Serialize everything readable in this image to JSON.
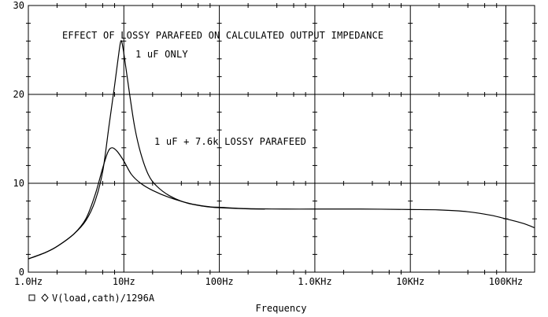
{
  "chart_data": {
    "type": "line",
    "title": "EFFECT OF LOSSY PARAFEED ON CALCULATED OUTPUT IMPEDANCE",
    "xlabel": "Frequency",
    "ylabel": "",
    "x_scale": "log",
    "xlim": [
      1,
      200000
    ],
    "ylim": [
      0,
      30
    ],
    "grid": true,
    "x_ticks": [
      {
        "value": 1,
        "label": "1.0Hz"
      },
      {
        "value": 10,
        "label": "10Hz"
      },
      {
        "value": 100,
        "label": "100Hz"
      },
      {
        "value": 1000,
        "label": "1.0KHz"
      },
      {
        "value": 10000,
        "label": "10KHz"
      },
      {
        "value": 100000,
        "label": "100KHz"
      }
    ],
    "y_ticks": [
      {
        "value": 0,
        "label": "0"
      },
      {
        "value": 10,
        "label": "10"
      },
      {
        "value": 20,
        "label": "20"
      },
      {
        "value": 30,
        "label": "30"
      }
    ],
    "legend": {
      "placement": "bottom-left",
      "entry": "V(load,cath)/1296A",
      "markers": [
        "square",
        "diamond"
      ]
    },
    "annotations": [
      {
        "text": "1 uF ONLY"
      },
      {
        "text": "1 uF + 7.6k LOSSY PARAFEED"
      }
    ],
    "series": [
      {
        "name": "1 uF ONLY",
        "points": [
          [
            1,
            1.5
          ],
          [
            1.5,
            2.2
          ],
          [
            2,
            2.9
          ],
          [
            3,
            4.3
          ],
          [
            4,
            5.8
          ],
          [
            5,
            8.0
          ],
          [
            6,
            11.3
          ],
          [
            7,
            16.5
          ],
          [
            8,
            21.0
          ],
          [
            8.7,
            24.0
          ],
          [
            9.3,
            26.0
          ],
          [
            9.8,
            25.2
          ],
          [
            10.5,
            23.0
          ],
          [
            11.5,
            20.0
          ],
          [
            13,
            16.3
          ],
          [
            15,
            13.4
          ],
          [
            18,
            11.0
          ],
          [
            22,
            9.7
          ],
          [
            30,
            8.6
          ],
          [
            45,
            7.8
          ],
          [
            70,
            7.4
          ],
          [
            100,
            7.25
          ],
          [
            200,
            7.12
          ],
          [
            300,
            7.1
          ]
        ]
      },
      {
        "name": "1 uF + 7.6k LOSSY PARAFEED",
        "points": [
          [
            1,
            1.5
          ],
          [
            1.5,
            2.2
          ],
          [
            2,
            2.9
          ],
          [
            3,
            4.3
          ],
          [
            4,
            6.0
          ],
          [
            5,
            8.7
          ],
          [
            6,
            11.7
          ],
          [
            6.8,
            13.5
          ],
          [
            7.5,
            14.0
          ],
          [
            8.5,
            13.6
          ],
          [
            10,
            12.5
          ],
          [
            12,
            11.0
          ],
          [
            15,
            10.0
          ],
          [
            20,
            9.2
          ],
          [
            30,
            8.4
          ],
          [
            50,
            7.7
          ],
          [
            80,
            7.35
          ],
          [
            100,
            7.3
          ],
          [
            200,
            7.15
          ],
          [
            500,
            7.1
          ],
          [
            1000,
            7.1
          ],
          [
            3000,
            7.1
          ],
          [
            10000,
            7.05
          ],
          [
            20000,
            7.0
          ],
          [
            40000,
            6.8
          ],
          [
            70000,
            6.4
          ],
          [
            100000,
            6.0
          ],
          [
            150000,
            5.5
          ],
          [
            200000,
            5.0
          ]
        ]
      }
    ]
  }
}
